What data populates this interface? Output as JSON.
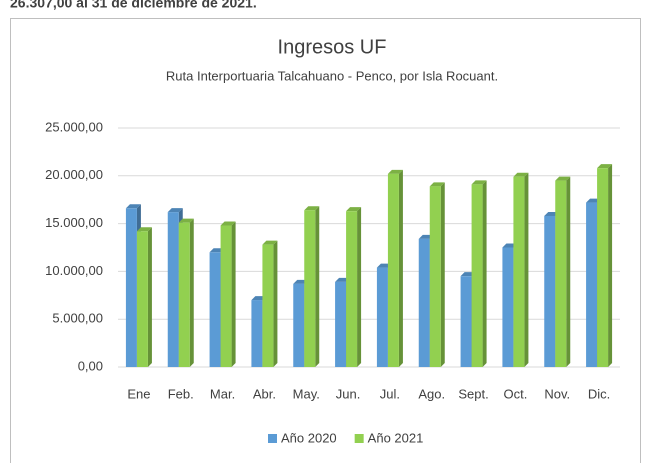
{
  "header_text": "26.307,00 al 31 de diciembre de 2021.",
  "chart_data": {
    "type": "bar3d",
    "title": "Ingresos UF",
    "subtitle": "Ruta Interportuaria Talcahuano - Penco, por Isla Rocuant.",
    "categories": [
      "Ene",
      "Feb.",
      "Mar.",
      "Abr.",
      "May.",
      "Jun.",
      "Jul.",
      "Ago.",
      "Sept.",
      "Oct.",
      "Nov.",
      "Dic."
    ],
    "series": [
      {
        "name": "Año 2020",
        "color": "#5b9bd5",
        "values": [
          16600,
          16200,
          12000,
          7000,
          8700,
          8900,
          10400,
          13400,
          9500,
          12500,
          15800,
          17200
        ]
      },
      {
        "name": "Año 2021",
        "color": "#92d050",
        "values": [
          14200,
          15100,
          14800,
          12800,
          16400,
          16300,
          20200,
          18900,
          19100,
          19900,
          19500,
          20800
        ]
      }
    ],
    "ylim": [
      0,
      25000
    ],
    "yticks": [
      {
        "value": 0,
        "label": "0,00"
      },
      {
        "value": 5000,
        "label": "5.000,00"
      },
      {
        "value": 10000,
        "label": "10.000,00"
      },
      {
        "value": 15000,
        "label": "15.000,00"
      },
      {
        "value": 20000,
        "label": "20.000,00"
      },
      {
        "value": 25000,
        "label": "25.000,00"
      }
    ],
    "grid": true,
    "legend": "bottom"
  }
}
